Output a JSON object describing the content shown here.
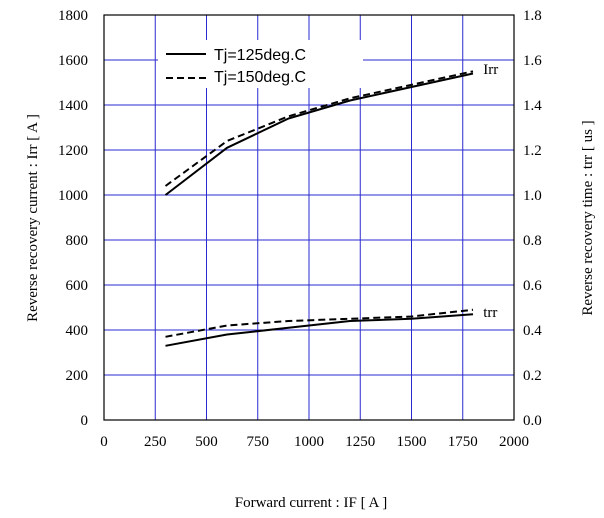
{
  "chart_data": {
    "type": "line",
    "xlabel": "Forward current : IF [ A ]",
    "ylabel_left": "Reverse recovery current : Irr [ A ]",
    "ylabel_right": "Reverse recovery time : trr [ us ]",
    "xlim": [
      0,
      2000
    ],
    "ylim_left": [
      0,
      1800
    ],
    "ylim_right": [
      0.0,
      1.8
    ],
    "x_ticks": [
      0,
      250,
      500,
      750,
      1000,
      1250,
      1500,
      1750,
      2000
    ],
    "x_tick_labels": [
      "0",
      "250",
      "500",
      "750",
      "1000",
      "1250",
      "1500",
      "1750",
      "2000"
    ],
    "y_left_ticks": [
      0,
      200,
      400,
      600,
      800,
      1000,
      1200,
      1400,
      1600,
      1800
    ],
    "y_left_tick_labels": [
      "0",
      "200",
      "400",
      "600",
      "800",
      "1000",
      "1200",
      "1400",
      "1600",
      "1800"
    ],
    "y_right_ticks": [
      0.0,
      0.2,
      0.4,
      0.6,
      0.8,
      1.0,
      1.2,
      1.4,
      1.6,
      1.8
    ],
    "y_right_tick_labels": [
      "0.0",
      "0.2",
      "0.4",
      "0.6",
      "0.8",
      "1.0",
      "1.2",
      "1.4",
      "1.6",
      "1.8"
    ],
    "grid": true,
    "grid_color": "#2a2ad0",
    "legend_position": "top-left",
    "legend": [
      {
        "label": "Tj=125deg.C",
        "style": "solid"
      },
      {
        "label": "Tj=150deg.C",
        "style": "dashed"
      }
    ],
    "annotations": [
      {
        "text": "Irr",
        "x": 1850,
        "y": 1560,
        "axis": "left"
      },
      {
        "text": "trr",
        "x": 1850,
        "y": 0.48,
        "axis": "right"
      }
    ],
    "series": [
      {
        "group": "Irr",
        "legend_index": 0,
        "axis": "left",
        "style": "solid",
        "x": [
          300,
          600,
          900,
          1200,
          1500,
          1800
        ],
        "y": [
          1000,
          1210,
          1340,
          1420,
          1480,
          1540
        ]
      },
      {
        "group": "Irr",
        "legend_index": 1,
        "axis": "left",
        "style": "dashed",
        "x": [
          300,
          600,
          900,
          1200,
          1500,
          1800
        ],
        "y": [
          1040,
          1240,
          1350,
          1430,
          1490,
          1550
        ]
      },
      {
        "group": "trr",
        "legend_index": 0,
        "axis": "right",
        "style": "solid",
        "x": [
          300,
          600,
          900,
          1200,
          1500,
          1800
        ],
        "y": [
          0.33,
          0.38,
          0.41,
          0.44,
          0.45,
          0.47
        ]
      },
      {
        "group": "trr",
        "legend_index": 1,
        "axis": "right",
        "style": "dashed",
        "x": [
          300,
          600,
          900,
          1200,
          1500,
          1800
        ],
        "y": [
          0.37,
          0.42,
          0.44,
          0.45,
          0.46,
          0.49
        ]
      }
    ]
  }
}
